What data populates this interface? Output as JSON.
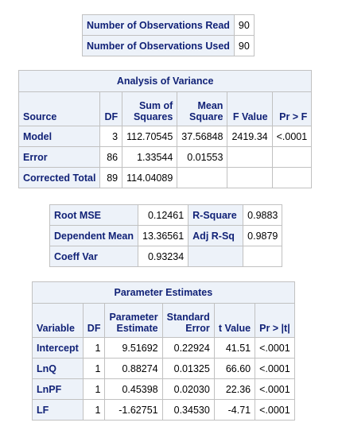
{
  "observations": {
    "rows": [
      {
        "label": "Number of Observations Read",
        "value": "90"
      },
      {
        "label": "Number of Observations Used",
        "value": "90"
      }
    ]
  },
  "anova": {
    "title": "Analysis of Variance",
    "headers": {
      "source": "Source",
      "df": "DF",
      "ss_line1": "Sum of",
      "ss_line2": "Squares",
      "ms_line1": "Mean",
      "ms_line2": "Square",
      "f": "F Value",
      "p": "Pr > F"
    },
    "rows": [
      {
        "source": "Model",
        "df": "3",
        "ss": "112.70545",
        "ms": "37.56848",
        "f": "2419.34",
        "p": "<.0001"
      },
      {
        "source": "Error",
        "df": "86",
        "ss": "1.33544",
        "ms": "0.01553",
        "f": "",
        "p": ""
      },
      {
        "source": "Corrected Total",
        "df": "89",
        "ss": "114.04089",
        "ms": "",
        "f": "",
        "p": ""
      }
    ]
  },
  "fit": {
    "rows": [
      {
        "label1": "Root MSE",
        "value1": "0.12461",
        "label2": "R-Square",
        "value2": "0.9883"
      },
      {
        "label1": "Dependent Mean",
        "value1": "13.36561",
        "label2": "Adj R-Sq",
        "value2": "0.9879"
      },
      {
        "label1": "Coeff Var",
        "value1": "0.93234",
        "label2": "",
        "value2": ""
      }
    ]
  },
  "params": {
    "title": "Parameter Estimates",
    "headers": {
      "variable": "Variable",
      "df": "DF",
      "est_line1": "Parameter",
      "est_line2": "Estimate",
      "se_line1": "Standard",
      "se_line2": "Error",
      "t": "t Value",
      "p": "Pr > |t|"
    },
    "rows": [
      {
        "variable": "Intercept",
        "df": "1",
        "est": "9.51692",
        "se": "0.22924",
        "t": "41.51",
        "p": "<.0001"
      },
      {
        "variable": "LnQ",
        "df": "1",
        "est": "0.88274",
        "se": "0.01325",
        "t": "66.60",
        "p": "<.0001"
      },
      {
        "variable": "LnPF",
        "df": "1",
        "est": "0.45398",
        "se": "0.02030",
        "t": "22.36",
        "p": "<.0001"
      },
      {
        "variable": "LF",
        "df": "1",
        "est": "-1.62751",
        "se": "0.34530",
        "t": "-4.71",
        "p": "<.0001"
      }
    ]
  }
}
